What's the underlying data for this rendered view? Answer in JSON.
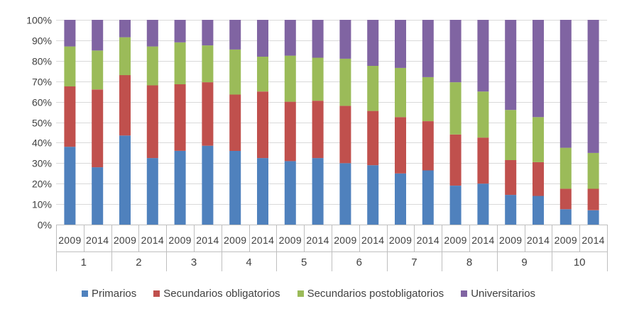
{
  "chart_data": {
    "type": "bar",
    "stacked": true,
    "percent_axis": true,
    "y_ticks": [
      "0%",
      "10%",
      "20%",
      "30%",
      "40%",
      "50%",
      "60%",
      "70%",
      "80%",
      "90%",
      "100%"
    ],
    "ylim": [
      0,
      100
    ],
    "grid": true,
    "legend_position": "bottom",
    "groups": [
      "1",
      "2",
      "3",
      "4",
      "5",
      "6",
      "7",
      "8",
      "9",
      "10"
    ],
    "years": [
      "2009",
      "2014"
    ],
    "categories": [
      "1|2009",
      "1|2014",
      "2|2009",
      "2|2014",
      "3|2009",
      "3|2014",
      "4|2009",
      "4|2014",
      "5|2009",
      "5|2014",
      "6|2009",
      "6|2014",
      "7|2009",
      "7|2014",
      "8|2009",
      "8|2014",
      "9|2009",
      "9|2014",
      "10|2009",
      "10|2014"
    ],
    "series": [
      {
        "name": "Primarios",
        "color": "#4F81BD",
        "values": [
          38,
          28,
          43.5,
          32.5,
          36,
          38.5,
          36,
          32.5,
          31,
          32.5,
          30,
          29,
          25,
          26.5,
          19,
          20,
          14.5,
          14,
          7.5,
          7
        ]
      },
      {
        "name": "Secundarios obligatorios",
        "color": "#C0504D",
        "values": [
          29.5,
          38,
          29.5,
          35.5,
          32.5,
          31,
          27.5,
          32.5,
          29,
          28,
          28,
          26.5,
          27.5,
          24,
          25,
          22.5,
          17,
          16.5,
          10,
          10.5
        ]
      },
      {
        "name": "Secundarios postobligatorios",
        "color": "#9BBB59",
        "values": [
          19.5,
          19,
          18.5,
          19,
          20.5,
          18,
          22,
          17,
          22.5,
          21,
          23,
          22,
          24,
          21.5,
          25.5,
          22.5,
          24.5,
          22,
          20,
          17.5
        ]
      },
      {
        "name": "Universitarios",
        "color": "#8064A2",
        "values": [
          13,
          15,
          8.5,
          13,
          11,
          12.5,
          14.5,
          18,
          17.5,
          18.5,
          19,
          22.5,
          23.5,
          28,
          30.5,
          35,
          44,
          47.5,
          62.5,
          65
        ]
      }
    ]
  }
}
